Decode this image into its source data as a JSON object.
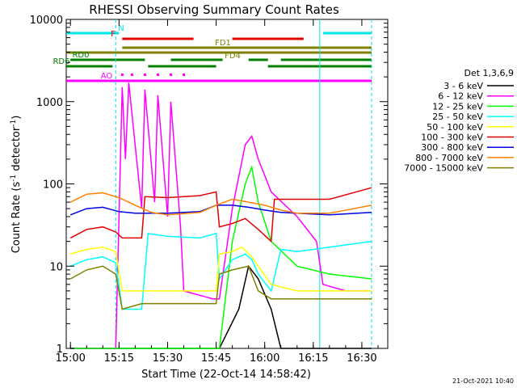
{
  "chart_data": {
    "type": "line",
    "title": "RHESSI Observing Summary Count Rates",
    "xlabel": "Start Time (22-Oct-14 14:58:42)",
    "ylabel_main": "Count Rate (s",
    "ylabel_sup1": "-1",
    "ylabel_mid": " detector",
    "ylabel_sup2": "-1",
    "ylabel_end": ")",
    "ylog": true,
    "xlim": [
      "14:58:42",
      "16:38:00"
    ],
    "ylim": [
      1,
      10000
    ],
    "x_ticks": [
      "15:00",
      "15:15",
      "15:30",
      "15:45",
      "16:00",
      "16:15",
      "16:30"
    ],
    "y_ticks": [
      "1",
      "10",
      "100",
      "1000",
      "10000"
    ],
    "legend_title": "Det 1,3,6,9",
    "legend_position": "right",
    "footer": "21-Oct-2021 10:40",
    "flags": [
      {
        "name": "N",
        "color": "#00e5e5",
        "segments": [
          [
            "14:58:42",
            "15:15"
          ],
          [
            "16:18",
            "16:33"
          ]
        ]
      },
      {
        "name": "F",
        "color": "#e00000",
        "segments": [
          [
            "15:16",
            "15:38"
          ],
          [
            "15:50",
            "16:12"
          ]
        ]
      },
      {
        "name": "FD1",
        "color": "#808000",
        "segments": [
          [
            "15:16",
            "16:33"
          ]
        ]
      },
      {
        "name": "FD4",
        "color": "#808000",
        "segments": [
          [
            "14:58:42",
            "16:33"
          ]
        ]
      },
      {
        "name": "RD0",
        "color": "#008000",
        "segments": [
          [
            "15:00",
            "15:23"
          ],
          [
            "15:31",
            "15:47"
          ],
          [
            "15:55",
            "16:01"
          ],
          [
            "16:05",
            "16:33"
          ]
        ]
      },
      {
        "name": "RD6",
        "color": "#008000",
        "segments": [
          [
            "14:58:42",
            "15:13"
          ],
          [
            "15:24",
            "15:45"
          ],
          [
            "16:01",
            "16:33"
          ]
        ]
      },
      {
        "name": "AO",
        "color": "#ff00ff",
        "segments": [
          [
            "14:58:42",
            "16:33"
          ]
        ]
      }
    ],
    "series": [
      {
        "name": "3 - 6 keV",
        "color": "#000000",
        "x": [
          "15:00",
          "15:10",
          "15:15",
          "15:16",
          "15:22",
          "15:26",
          "15:30",
          "15:34",
          "15:46",
          "15:52",
          "15:55",
          "15:58",
          "16:02",
          "16:05",
          "16:10",
          "16:20",
          "16:33"
        ],
        "y": [
          1,
          1,
          1,
          1,
          1,
          1,
          1,
          1,
          1,
          3,
          10,
          7,
          3,
          1,
          1,
          1,
          1
        ]
      },
      {
        "name": "6 - 12 keV",
        "color": "#ff00ff",
        "x": [
          "15:00",
          "15:10",
          "15:14",
          "15:16",
          "15:17",
          "15:18",
          "15:22",
          "15:23",
          "15:26",
          "15:27",
          "15:30",
          "15:31",
          "15:34",
          "15:35",
          "15:44",
          "15:46",
          "15:50",
          "15:54",
          "15:56",
          "15:58",
          "16:02",
          "16:10",
          "16:16",
          "16:18",
          "16:25",
          "16:33"
        ],
        "y": [
          1,
          1,
          1,
          1500,
          200,
          1700,
          50,
          1400,
          60,
          1200,
          40,
          1000,
          30,
          5,
          4,
          4,
          50,
          300,
          380,
          200,
          80,
          40,
          20,
          6,
          5,
          5
        ]
      },
      {
        "name": "12 - 25 keV",
        "color": "#00ff00",
        "x": [
          "15:00",
          "15:10",
          "15:14",
          "15:16",
          "15:18",
          "15:22",
          "15:26",
          "15:30",
          "15:34",
          "15:44",
          "15:46",
          "15:50",
          "15:54",
          "15:56",
          "15:58",
          "16:02",
          "16:10",
          "16:20",
          "16:33"
        ],
        "y": [
          1,
          1,
          1,
          1,
          1,
          1,
          1,
          1,
          1,
          1,
          1,
          20,
          100,
          160,
          60,
          20,
          10,
          8,
          7
        ]
      },
      {
        "name": "25 - 50 keV",
        "color": "#00ffff",
        "x": [
          "15:00",
          "15:05",
          "15:10",
          "15:14",
          "15:16",
          "15:22",
          "15:24",
          "15:30",
          "15:40",
          "15:45",
          "15:46",
          "15:50",
          "15:54",
          "15:56",
          "15:58",
          "16:02",
          "16:05",
          "16:10",
          "16:20",
          "16:33"
        ],
        "y": [
          10,
          12,
          13,
          11,
          3,
          3,
          25,
          23,
          22,
          25,
          7,
          12,
          14,
          12,
          8,
          5,
          16,
          15,
          17,
          20
        ]
      },
      {
        "name": "50 - 100 keV",
        "color": "#ffff00",
        "x": [
          "15:00",
          "15:05",
          "15:10",
          "15:14",
          "15:16",
          "15:22",
          "15:24",
          "15:30",
          "15:40",
          "15:45",
          "15:46",
          "15:50",
          "15:53",
          "15:56",
          "15:58",
          "16:02",
          "16:10",
          "16:20",
          "16:33"
        ],
        "y": [
          14,
          16,
          17,
          15,
          5,
          5,
          5,
          5,
          5,
          5,
          14,
          15,
          17,
          13,
          10,
          6,
          5,
          5,
          5
        ]
      },
      {
        "name": "100 - 300 keV",
        "color": "#e00000",
        "x": [
          "15:00",
          "15:05",
          "15:10",
          "15:14",
          "15:16",
          "15:22",
          "15:23",
          "15:30",
          "15:40",
          "15:45",
          "15:46",
          "15:50",
          "15:54",
          "15:58",
          "16:02",
          "16:03",
          "16:10",
          "16:20",
          "16:33"
        ],
        "y": [
          22,
          28,
          30,
          26,
          22,
          22,
          70,
          68,
          72,
          80,
          30,
          33,
          38,
          28,
          20,
          65,
          65,
          65,
          90
        ]
      },
      {
        "name": "300 - 800 keV",
        "color": "#0000e0",
        "x": [
          "15:00",
          "15:05",
          "15:10",
          "15:15",
          "15:20",
          "15:30",
          "15:40",
          "15:45",
          "15:50",
          "15:55",
          "16:00",
          "16:05",
          "16:10",
          "16:20",
          "16:33"
        ],
        "y": [
          42,
          50,
          52,
          46,
          44,
          44,
          46,
          55,
          55,
          52,
          48,
          45,
          44,
          42,
          45
        ]
      },
      {
        "name": "800 - 7000 keV",
        "color": "#ff8000",
        "x": [
          "15:00",
          "15:05",
          "15:10",
          "15:15",
          "15:20",
          "15:25",
          "15:30",
          "15:40",
          "15:45",
          "15:50",
          "15:55",
          "16:00",
          "16:05",
          "16:10",
          "16:20",
          "16:33"
        ],
        "y": [
          60,
          75,
          78,
          68,
          55,
          45,
          42,
          45,
          55,
          65,
          60,
          55,
          48,
          44,
          44,
          55
        ]
      },
      {
        "name": "7000 - 15000 keV",
        "color": "#808000",
        "x": [
          "15:00",
          "15:05",
          "15:10",
          "15:14",
          "15:16",
          "15:22",
          "15:30",
          "15:40",
          "15:45",
          "15:46",
          "15:50",
          "15:55",
          "15:58",
          "16:02",
          "16:10",
          "16:20",
          "16:33"
        ],
        "y": [
          7,
          9,
          10,
          8,
          3,
          3.5,
          3.5,
          3.5,
          3.5,
          8,
          9,
          10,
          5,
          4,
          4,
          4,
          4
        ]
      }
    ]
  }
}
